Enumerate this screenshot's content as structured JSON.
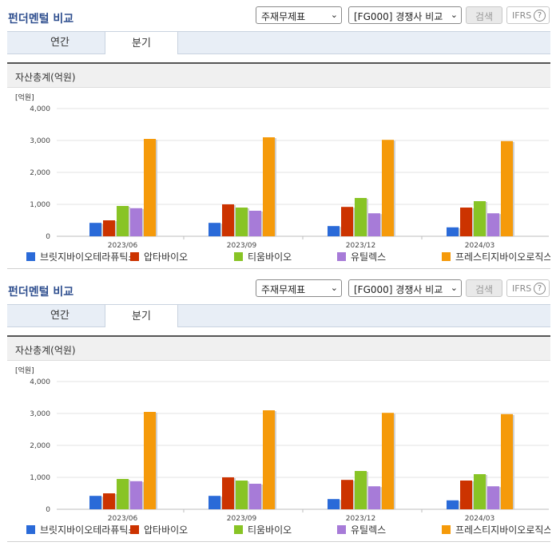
{
  "header": {
    "title": "펀더멘털 비교",
    "statement_select": "주재무제표",
    "peer_select": "[FG000] 경쟁사 비교",
    "search_label": "검색",
    "ifrs_label": "IFRS",
    "help_label": "?"
  },
  "tabs": [
    {
      "label": "연간",
      "active": false
    },
    {
      "label": "분기",
      "active": true
    }
  ],
  "section": {
    "title": "자산총계(억원)"
  },
  "colors": {
    "series": [
      "#2a6ad8",
      "#cc3300",
      "#88c425",
      "#a77bd8",
      "#f59a0a"
    ]
  },
  "chart_data": {
    "type": "bar",
    "unit_label": "[억원]",
    "categories": [
      "2023/06",
      "2023/09",
      "2023/12",
      "2024/03"
    ],
    "ylim": [
      0,
      4000
    ],
    "yticks": [
      "0",
      "1,000",
      "2,000",
      "3,000",
      "4,000"
    ],
    "ytick_values": [
      0,
      1000,
      2000,
      3000,
      4000
    ],
    "grid": true,
    "legend_position": "bottom",
    "series": [
      {
        "name": "브릿지바이오테라퓨틱스",
        "values": [
          420,
          420,
          320,
          280
        ]
      },
      {
        "name": "압타바이오",
        "values": [
          500,
          1000,
          920,
          900
        ]
      },
      {
        "name": "티움바이오",
        "values": [
          950,
          900,
          1200,
          1100
        ]
      },
      {
        "name": "유틸렉스",
        "values": [
          880,
          800,
          720,
          720
        ]
      },
      {
        "name": "프레스티지바이오로직스",
        "values": [
          3050,
          3100,
          3020,
          2980
        ]
      }
    ]
  }
}
